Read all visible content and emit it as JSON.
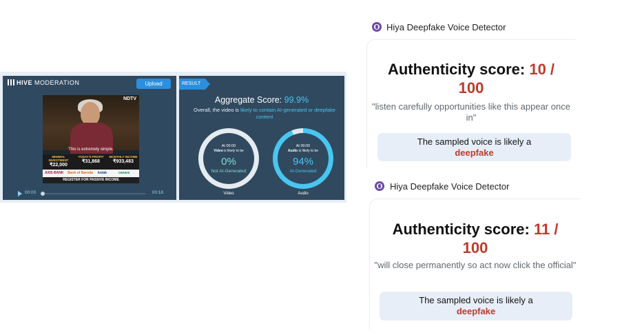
{
  "hive": {
    "brand_bold": "HIVE",
    "brand_thin": "MODERATION",
    "upload_label": "Upload",
    "video": {
      "channel_logo": "NDTV",
      "caption": "This is extremely simple.",
      "stats": [
        {
          "label": "MINIMAL INVESTMENT",
          "value": "₹22,000"
        },
        {
          "label": "TODAY'S PROFIT",
          "value": "₹31,868"
        },
        {
          "label": "MONTHLY INCOME",
          "value": "₹933,483"
        }
      ],
      "sponsors": [
        "AXIS BANK",
        "Bank of Baroda",
        "kotak",
        "canara"
      ],
      "register_text": "REGISTER FOR PASSIVE INCOME"
    },
    "player": {
      "current_time": "00:00",
      "duration": "00:18"
    },
    "result": {
      "tab_label": "RESULT",
      "aggregate_label": "Aggregate Score:",
      "aggregate_value": "99.9%",
      "overall_prefix": "Overall, the video is",
      "overall_highlight": "likely to contain AI-generated or deepfake content",
      "gauges": [
        {
          "time": "At 00:00",
          "likely_bold": "Video",
          "likely_rest": "is likely to be",
          "percent": "0%",
          "verdict": "Not AI-Generated",
          "label": "Video",
          "fraction": 0.0,
          "color": "#7fe0d0"
        },
        {
          "time": "At 00:00",
          "likely_bold": "Audio",
          "likely_rest": "is likely to be",
          "percent": "94%",
          "verdict": "AI-Generated",
          "label": "Audio",
          "fraction": 0.94,
          "color": "#48c6f0"
        }
      ]
    }
  },
  "hiya_cards": [
    {
      "title": "Hiya Deepfake Voice Detector",
      "score_label": "Authenticity score:",
      "score_value": "10 /",
      "score_max": "100",
      "quote": "\"listen carefully opportunities like this appear once in\"",
      "verdict_text": "The sampled voice is likely a",
      "verdict_value": "deepfake"
    },
    {
      "title": "Hiya Deepfake Voice Detector",
      "score_label": "Authenticity score:",
      "score_value": "11 /",
      "score_max": "100",
      "quote": "\"will close permanently so act now click the official\"",
      "verdict_text": "The sampled voice is likely a",
      "verdict_value": "deepfake"
    }
  ],
  "colors": {
    "accent_blue": "#2b8fdd",
    "result_cyan": "#48c6f0",
    "deepfake_red": "#c0392b",
    "hiya_purple": "#6b4aa6"
  }
}
